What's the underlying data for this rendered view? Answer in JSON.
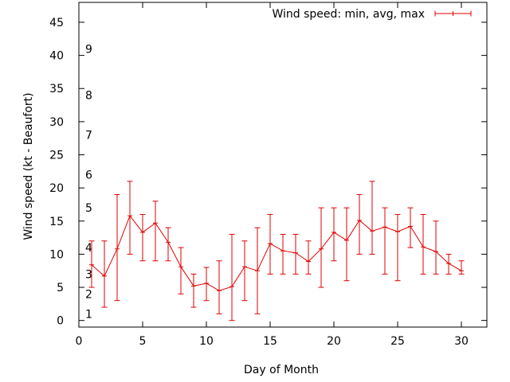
{
  "colors": {
    "series": "#e00000",
    "axis": "#000000",
    "background": "#ffffff"
  },
  "chart_data": {
    "type": "line",
    "xlabel": "Day of Month",
    "ylabel": "Wind speed (kt - Beaufort)",
    "xlim": [
      0,
      32
    ],
    "ylim": [
      -1,
      48
    ],
    "xticks": [
      0,
      5,
      10,
      15,
      20,
      25,
      30
    ],
    "yticks": [
      0,
      5,
      10,
      15,
      20,
      25,
      30,
      35,
      40,
      45
    ],
    "grid": false,
    "legend": {
      "position": "top-right",
      "label": "Wind speed: min, avg, max"
    },
    "beaufort": [
      {
        "label": "1",
        "kt": 1
      },
      {
        "label": "2",
        "kt": 4
      },
      {
        "label": "3",
        "kt": 7
      },
      {
        "label": "4",
        "kt": 11
      },
      {
        "label": "5",
        "kt": 17
      },
      {
        "label": "6",
        "kt": 22
      },
      {
        "label": "7",
        "kt": 28
      },
      {
        "label": "8",
        "kt": 34
      },
      {
        "label": "9",
        "kt": 41
      }
    ],
    "series": [
      {
        "name": "Wind speed: min, avg, max",
        "x": [
          1,
          2,
          3,
          4,
          5,
          6,
          7,
          8,
          9,
          10,
          11,
          12,
          13,
          14,
          15,
          16,
          17,
          18,
          19,
          20,
          21,
          22,
          23,
          24,
          25,
          26,
          27,
          28,
          29,
          30
        ],
        "y": [
          8.4,
          6.7,
          10.8,
          15.8,
          13.3,
          14.7,
          11.8,
          8.1,
          5.2,
          5.6,
          4.5,
          5.1,
          8.1,
          7.5,
          11.6,
          10.5,
          10.2,
          8.9,
          10.8,
          13.3,
          12.1,
          15.1,
          13.5,
          14.1,
          13.4,
          14.2,
          11.1,
          10.4,
          8.6,
          7.5
        ],
        "min": [
          5,
          2,
          3,
          10,
          9,
          9,
          9,
          4,
          2,
          3,
          1,
          0,
          3,
          1,
          7,
          7,
          7,
          7,
          5,
          9,
          6,
          10,
          10,
          7,
          6,
          11,
          7,
          7,
          7,
          7
        ],
        "max": [
          12,
          12,
          19,
          21,
          16,
          18,
          14,
          11,
          7,
          8,
          9,
          13,
          12,
          14,
          16,
          13,
          13,
          12,
          17,
          17,
          17,
          19,
          21,
          17,
          16,
          17,
          16,
          15,
          10,
          9
        ]
      }
    ]
  }
}
